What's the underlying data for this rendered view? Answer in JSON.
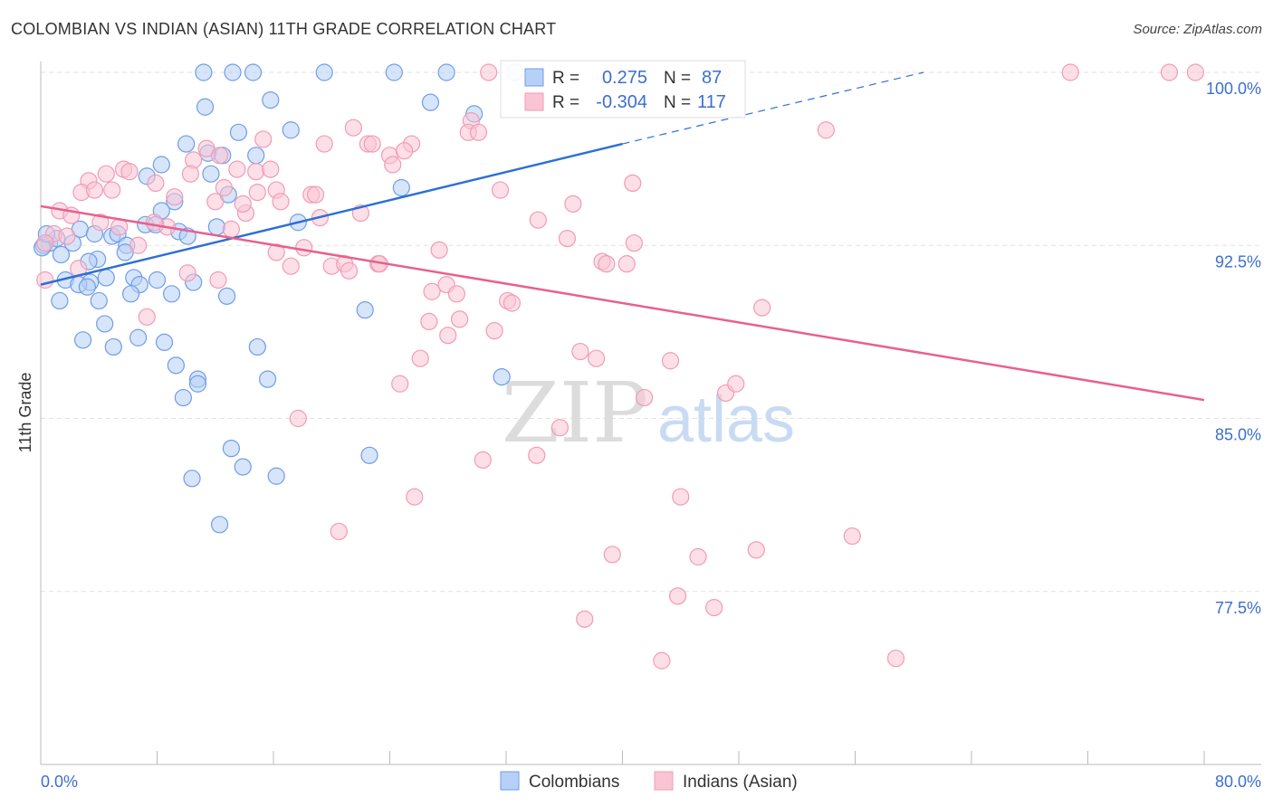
{
  "chart_data": {
    "type": "scatter",
    "title": "COLOMBIAN VS INDIAN (ASIAN) 11TH GRADE CORRELATION CHART",
    "source": "Source: ZipAtlas.com",
    "xlabel": "",
    "ylabel": "11th Grade",
    "xlim": [
      0,
      80
    ],
    "ylim": [
      70,
      100
    ],
    "x_tick_labels": [
      "0.0%",
      "80.0%"
    ],
    "y_ticks": [
      100,
      92.5,
      85,
      77.5
    ],
    "y_tick_labels": [
      "100.0%",
      "92.5%",
      "85.0%",
      "77.5%"
    ],
    "grid": true,
    "legend_position": "top-center",
    "legend": [
      {
        "r_label": "R =",
        "r": "0.275",
        "n_label": "N =",
        "n": "87"
      },
      {
        "r_label": "R =",
        "r": "-0.304",
        "n_label": "N =",
        "n": "117"
      }
    ],
    "watermark": {
      "a": "ZIP",
      "b": "atlas"
    },
    "series": [
      {
        "name": "Colombians",
        "color": "#6f9de8",
        "line_color": "#2b6fd6",
        "trend": {
          "x0": 0,
          "y0": 90.8,
          "x1": 40,
          "y1": 96.9,
          "dash_x1": 60.7,
          "dash_y1": 100
        },
        "points": [
          [
            11.2,
            100
          ],
          [
            13.2,
            100
          ],
          [
            14.6,
            100
          ],
          [
            19.5,
            100
          ],
          [
            24.3,
            100
          ],
          [
            27.9,
            100
          ],
          [
            32.6,
            100
          ],
          [
            11.3,
            98.5
          ],
          [
            15.8,
            98.8
          ],
          [
            26.8,
            98.7
          ],
          [
            29.8,
            98.2
          ],
          [
            13.6,
            97.4
          ],
          [
            17.2,
            97.5
          ],
          [
            10.0,
            96.9
          ],
          [
            11.5,
            96.5
          ],
          [
            12.5,
            96.4
          ],
          [
            14.8,
            96.4
          ],
          [
            8.3,
            96.0
          ],
          [
            11.7,
            95.6
          ],
          [
            7.3,
            95.5
          ],
          [
            12.9,
            94.7
          ],
          [
            24.8,
            95.0
          ],
          [
            9.2,
            94.4
          ],
          [
            8.3,
            94.0
          ],
          [
            7.2,
            93.4
          ],
          [
            7.9,
            93.4
          ],
          [
            12.1,
            93.3
          ],
          [
            17.7,
            93.5
          ],
          [
            2.7,
            93.2
          ],
          [
            3.7,
            93.0
          ],
          [
            4.9,
            92.9
          ],
          [
            5.3,
            93.0
          ],
          [
            5.9,
            92.5
          ],
          [
            5.8,
            92.2
          ],
          [
            9.5,
            93.1
          ],
          [
            10.1,
            92.9
          ],
          [
            0.6,
            92.6
          ],
          [
            1.1,
            92.8
          ],
          [
            2.2,
            92.6
          ],
          [
            1.4,
            92.1
          ],
          [
            3.9,
            91.9
          ],
          [
            3.3,
            91.8
          ],
          [
            0.2,
            92.5
          ],
          [
            6.4,
            91.1
          ],
          [
            8.0,
            91.0
          ],
          [
            4.5,
            91.1
          ],
          [
            3.4,
            90.9
          ],
          [
            1.7,
            91.0
          ],
          [
            2.6,
            90.8
          ],
          [
            3.2,
            90.7
          ],
          [
            6.8,
            90.8
          ],
          [
            10.5,
            90.9
          ],
          [
            6.2,
            90.4
          ],
          [
            9.0,
            90.4
          ],
          [
            12.8,
            90.3
          ],
          [
            1.3,
            90.1
          ],
          [
            4.0,
            90.1
          ],
          [
            22.3,
            89.7
          ],
          [
            4.4,
            89.1
          ],
          [
            2.9,
            88.4
          ],
          [
            5.0,
            88.1
          ],
          [
            6.7,
            88.5
          ],
          [
            8.5,
            88.3
          ],
          [
            14.9,
            88.1
          ],
          [
            9.3,
            87.3
          ],
          [
            10.8,
            86.7
          ],
          [
            10.8,
            86.5
          ],
          [
            15.6,
            86.7
          ],
          [
            9.8,
            85.9
          ],
          [
            31.7,
            86.8
          ],
          [
            13.1,
            83.7
          ],
          [
            22.6,
            83.4
          ],
          [
            13.9,
            82.9
          ],
          [
            16.2,
            82.5
          ],
          [
            10.4,
            82.4
          ],
          [
            12.3,
            80.4
          ],
          [
            0.1,
            92.4
          ],
          [
            0.4,
            93.0
          ]
        ]
      },
      {
        "name": "Indians (Asian)",
        "color": "#f19bb6",
        "line_color": "#e8608e",
        "trend": {
          "x0": 0,
          "y0": 94.2,
          "x1": 80,
          "y1": 85.8
        },
        "points": [
          [
            30.8,
            100
          ],
          [
            46.8,
            100
          ],
          [
            70.8,
            100
          ],
          [
            77.6,
            100
          ],
          [
            79.4,
            100
          ],
          [
            54.0,
            97.5
          ],
          [
            21.5,
            97.6
          ],
          [
            29.6,
            97.9
          ],
          [
            29.4,
            97.4
          ],
          [
            30.1,
            97.4
          ],
          [
            15.3,
            97.1
          ],
          [
            19.5,
            96.9
          ],
          [
            22.5,
            96.9
          ],
          [
            22.8,
            96.9
          ],
          [
            25.5,
            96.9
          ],
          [
            24.0,
            96.4
          ],
          [
            25.0,
            96.6
          ],
          [
            24.2,
            96.0
          ],
          [
            11.4,
            96.7
          ],
          [
            12.3,
            96.4
          ],
          [
            10.5,
            96.2
          ],
          [
            4.5,
            95.6
          ],
          [
            5.7,
            95.8
          ],
          [
            6.1,
            95.7
          ],
          [
            3.3,
            95.3
          ],
          [
            2.8,
            94.8
          ],
          [
            3.7,
            94.9
          ],
          [
            4.9,
            94.9
          ],
          [
            7.9,
            95.2
          ],
          [
            13.5,
            95.8
          ],
          [
            14.8,
            95.7
          ],
          [
            15.8,
            95.8
          ],
          [
            10.3,
            95.6
          ],
          [
            9.2,
            94.6
          ],
          [
            12.6,
            95.0
          ],
          [
            12.0,
            94.4
          ],
          [
            14.9,
            94.8
          ],
          [
            16.2,
            94.9
          ],
          [
            16.5,
            94.4
          ],
          [
            18.6,
            94.7
          ],
          [
            18.9,
            94.7
          ],
          [
            14.1,
            93.9
          ],
          [
            22.0,
            93.9
          ],
          [
            31.6,
            94.9
          ],
          [
            36.6,
            94.3
          ],
          [
            40.7,
            95.2
          ],
          [
            13.9,
            94.3
          ],
          [
            1.3,
            94.0
          ],
          [
            2.1,
            93.8
          ],
          [
            4.1,
            93.5
          ],
          [
            5.4,
            93.3
          ],
          [
            8.7,
            93.3
          ],
          [
            13.1,
            93.2
          ],
          [
            19.2,
            93.7
          ],
          [
            6.7,
            92.5
          ],
          [
            7.8,
            93.5
          ],
          [
            34.2,
            93.6
          ],
          [
            36.2,
            92.8
          ],
          [
            40.8,
            92.6
          ],
          [
            27.4,
            92.3
          ],
          [
            16.2,
            92.2
          ],
          [
            18.1,
            92.4
          ],
          [
            17.2,
            91.6
          ],
          [
            20.0,
            91.6
          ],
          [
            20.9,
            91.7
          ],
          [
            21.2,
            91.4
          ],
          [
            23.2,
            91.7
          ],
          [
            23.3,
            91.7
          ],
          [
            38.6,
            91.8
          ],
          [
            38.9,
            91.7
          ],
          [
            40.3,
            91.7
          ],
          [
            0.9,
            93.0
          ],
          [
            1.8,
            92.9
          ],
          [
            0.3,
            92.6
          ],
          [
            2.6,
            91.5
          ],
          [
            10.1,
            91.3
          ],
          [
            12.2,
            91.0
          ],
          [
            26.9,
            90.5
          ],
          [
            27.9,
            90.8
          ],
          [
            28.6,
            90.4
          ],
          [
            32.1,
            90.1
          ],
          [
            32.4,
            90.0
          ],
          [
            49.6,
            89.8
          ],
          [
            7.3,
            89.4
          ],
          [
            26.7,
            89.2
          ],
          [
            28.8,
            89.3
          ],
          [
            31.2,
            88.8
          ],
          [
            28.0,
            88.6
          ],
          [
            26.1,
            87.6
          ],
          [
            37.1,
            87.9
          ],
          [
            38.2,
            87.6
          ],
          [
            43.3,
            87.5
          ],
          [
            24.7,
            86.5
          ],
          [
            41.5,
            85.9
          ],
          [
            47.1,
            86.1
          ],
          [
            47.8,
            86.5
          ],
          [
            17.7,
            85.0
          ],
          [
            35.7,
            84.6
          ],
          [
            30.4,
            83.2
          ],
          [
            34.1,
            83.4
          ],
          [
            25.7,
            81.6
          ],
          [
            44.0,
            81.6
          ],
          [
            20.5,
            80.1
          ],
          [
            39.3,
            79.1
          ],
          [
            45.2,
            79.0
          ],
          [
            49.2,
            79.3
          ],
          [
            55.8,
            79.9
          ],
          [
            43.8,
            77.3
          ],
          [
            46.3,
            76.8
          ],
          [
            37.4,
            76.3
          ],
          [
            42.7,
            74.5
          ],
          [
            58.8,
            74.6
          ],
          [
            0.3,
            91.0
          ]
        ]
      }
    ]
  }
}
